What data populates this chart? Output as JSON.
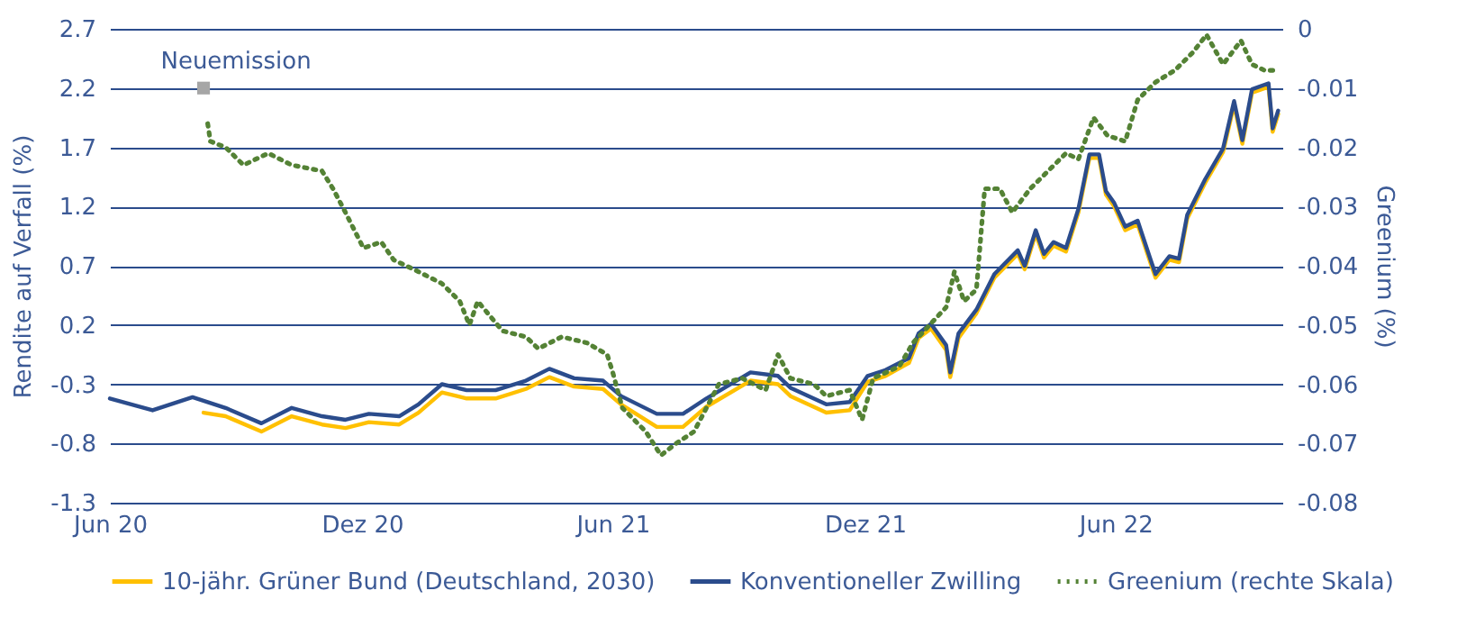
{
  "chart_data": {
    "type": "line",
    "ylabel": "Rendite auf Verfall (%)",
    "y2label": "Greenium (%)",
    "xlim": [
      "2020-06-01",
      "2022-09-30"
    ],
    "xticks": [
      {
        "value": "2020-06-01",
        "label": "Jun 20"
      },
      {
        "value": "2020-12-01",
        "label": "Dez 20"
      },
      {
        "value": "2021-06-01",
        "label": "Jun 21"
      },
      {
        "value": "2021-12-01",
        "label": "Dez 21"
      },
      {
        "value": "2022-06-01",
        "label": "Jun 22"
      }
    ],
    "ylim": [
      -1.3,
      2.7
    ],
    "yticks": [
      -1.3,
      -0.8,
      -0.3,
      0.2,
      0.7,
      1.2,
      1.7,
      2.2,
      2.7
    ],
    "y2lim": [
      -0.08,
      0
    ],
    "y2ticks": [
      -0.08,
      -0.07,
      -0.06,
      -0.05,
      -0.04,
      -0.03,
      -0.02,
      -0.01,
      0
    ],
    "grid": "y",
    "legend": "bottom",
    "annotations": [
      {
        "text": "Neuemission",
        "x": "2020-08-08",
        "y": 2.2
      }
    ],
    "series": [
      {
        "name": "10-jähr. Grüner Bund (Deutschland, 2030)",
        "color": "#ffc000",
        "line_style": "solid",
        "x": [
          "2020-08-08",
          "2020-08-24",
          "2020-09-19",
          "2020-10-11",
          "2020-11-02",
          "2020-11-19",
          "2020-12-06",
          "2020-12-28",
          "2021-01-11",
          "2021-01-28",
          "2021-02-15",
          "2021-03-08",
          "2021-03-30",
          "2021-04-16",
          "2021-05-04",
          "2021-05-25",
          "2021-06-07",
          "2021-07-03",
          "2021-07-22",
          "2021-08-08",
          "2021-09-09",
          "2021-09-29",
          "2021-10-08",
          "2021-11-03",
          "2021-11-20",
          "2021-12-03",
          "2021-12-16",
          "2022-01-02",
          "2022-01-09",
          "2022-01-18",
          "2022-01-29",
          "2022-02-01",
          "2022-02-07",
          "2022-02-20",
          "2022-03-05",
          "2022-03-22",
          "2022-03-27",
          "2022-04-04",
          "2022-04-10",
          "2022-04-17",
          "2022-04-26",
          "2022-05-05",
          "2022-05-13",
          "2022-05-20",
          "2022-05-25",
          "2022-05-31",
          "2022-06-08",
          "2022-06-17",
          "2022-06-27",
          "2022-06-30",
          "2022-07-10",
          "2022-07-17",
          "2022-07-23",
          "2022-08-05",
          "2022-08-18",
          "2022-08-26",
          "2022-09-01",
          "2022-09-08",
          "2022-09-20",
          "2022-09-23",
          "2022-09-27"
        ],
        "values": [
          -0.54,
          -0.57,
          -0.7,
          -0.57,
          -0.64,
          -0.67,
          -0.62,
          -0.64,
          -0.54,
          -0.37,
          -0.42,
          -0.42,
          -0.34,
          -0.24,
          -0.32,
          -0.34,
          -0.47,
          -0.66,
          -0.66,
          -0.49,
          -0.27,
          -0.3,
          -0.4,
          -0.54,
          -0.52,
          -0.28,
          -0.23,
          -0.12,
          0.09,
          0.17,
          -0.01,
          -0.24,
          0.09,
          0.3,
          0.6,
          0.8,
          0.67,
          0.97,
          0.77,
          0.87,
          0.82,
          1.15,
          1.61,
          1.61,
          1.3,
          1.2,
          1.0,
          1.05,
          0.7,
          0.6,
          0.75,
          0.73,
          1.1,
          1.4,
          1.66,
          2.06,
          1.73,
          2.16,
          2.21,
          1.83,
          1.98
        ]
      },
      {
        "name": "Konventioneller Zwilling",
        "color": "#2b4c8c",
        "line_style": "solid",
        "x": [
          "2020-06-01",
          "2020-07-02",
          "2020-07-31",
          "2020-08-24",
          "2020-09-19",
          "2020-10-11",
          "2020-11-02",
          "2020-11-19",
          "2020-12-06",
          "2020-12-28",
          "2021-01-11",
          "2021-01-28",
          "2021-02-15",
          "2021-03-08",
          "2021-03-30",
          "2021-04-16",
          "2021-05-04",
          "2021-05-25",
          "2021-06-07",
          "2021-07-03",
          "2021-07-22",
          "2021-08-08",
          "2021-09-09",
          "2021-09-29",
          "2021-10-08",
          "2021-11-03",
          "2021-11-20",
          "2021-12-03",
          "2021-12-16",
          "2022-01-02",
          "2022-01-09",
          "2022-01-18",
          "2022-01-29",
          "2022-02-01",
          "2022-02-07",
          "2022-02-20",
          "2022-03-05",
          "2022-03-22",
          "2022-03-27",
          "2022-04-04",
          "2022-04-10",
          "2022-04-17",
          "2022-04-26",
          "2022-05-05",
          "2022-05-13",
          "2022-05-20",
          "2022-05-25",
          "2022-05-31",
          "2022-06-08",
          "2022-06-17",
          "2022-06-27",
          "2022-06-30",
          "2022-07-10",
          "2022-07-17",
          "2022-07-23",
          "2022-08-05",
          "2022-08-18",
          "2022-08-26",
          "2022-09-01",
          "2022-09-08",
          "2022-09-20",
          "2022-09-23",
          "2022-09-27"
        ],
        "values": [
          -0.42,
          -0.52,
          -0.41,
          -0.5,
          -0.63,
          -0.5,
          -0.57,
          -0.6,
          -0.55,
          -0.57,
          -0.47,
          -0.3,
          -0.35,
          -0.35,
          -0.27,
          -0.17,
          -0.25,
          -0.27,
          -0.4,
          -0.55,
          -0.55,
          -0.42,
          -0.2,
          -0.23,
          -0.33,
          -0.47,
          -0.45,
          -0.23,
          -0.18,
          -0.08,
          0.13,
          0.21,
          0.03,
          -0.2,
          0.13,
          0.33,
          0.63,
          0.83,
          0.7,
          1.0,
          0.8,
          0.9,
          0.85,
          1.18,
          1.64,
          1.64,
          1.33,
          1.23,
          1.03,
          1.08,
          0.73,
          0.63,
          0.78,
          0.76,
          1.13,
          1.43,
          1.69,
          2.09,
          1.76,
          2.19,
          2.24,
          1.86,
          2.01
        ]
      },
      {
        "name": "Greenium (rechte Skala)",
        "color": "#548235",
        "line_style": "dotted",
        "axis": "y2",
        "x": [
          "2020-08-11",
          "2020-08-13",
          "2020-08-24",
          "2020-09-06",
          "2020-09-24",
          "2020-10-11",
          "2020-11-02",
          "2020-11-10",
          "2020-11-19",
          "2020-12-02",
          "2020-12-15",
          "2020-12-24",
          "2021-01-11",
          "2021-01-28",
          "2021-02-10",
          "2021-02-17",
          "2021-02-23",
          "2021-03-13",
          "2021-03-30",
          "2021-04-08",
          "2021-04-25",
          "2021-05-13",
          "2021-05-28",
          "2021-06-01",
          "2021-06-08",
          "2021-06-25",
          "2021-07-06",
          "2021-07-17",
          "2021-07-30",
          "2021-08-17",
          "2021-09-03",
          "2021-09-20",
          "2021-09-29",
          "2021-10-08",
          "2021-10-25",
          "2021-11-03",
          "2021-11-20",
          "2021-11-29",
          "2021-12-07",
          "2021-12-26",
          "2022-01-05",
          "2022-01-21",
          "2022-01-29",
          "2022-02-04",
          "2022-02-11",
          "2022-02-20",
          "2022-02-26",
          "2022-03-09",
          "2022-03-18",
          "2022-03-31",
          "2022-04-13",
          "2022-04-26",
          "2022-05-05",
          "2022-05-16",
          "2022-05-26",
          "2022-06-08",
          "2022-06-17",
          "2022-06-30",
          "2022-07-14",
          "2022-07-27",
          "2022-08-06",
          "2022-08-18",
          "2022-08-31",
          "2022-09-08",
          "2022-09-17",
          "2022-09-27"
        ],
        "values": [
          -0.016,
          -0.019,
          -0.02,
          -0.023,
          -0.021,
          -0.023,
          -0.024,
          -0.027,
          -0.031,
          -0.037,
          -0.036,
          -0.039,
          -0.041,
          -0.043,
          -0.046,
          -0.05,
          -0.046,
          -0.051,
          -0.052,
          -0.054,
          -0.052,
          -0.053,
          -0.055,
          -0.058,
          -0.064,
          -0.068,
          -0.072,
          -0.07,
          -0.068,
          -0.06,
          -0.059,
          -0.061,
          -0.055,
          -0.059,
          -0.06,
          -0.062,
          -0.061,
          -0.066,
          -0.059,
          -0.057,
          -0.053,
          -0.049,
          -0.047,
          -0.041,
          -0.046,
          -0.044,
          -0.027,
          -0.027,
          -0.031,
          -0.027,
          -0.024,
          -0.021,
          -0.022,
          -0.015,
          -0.018,
          -0.019,
          -0.012,
          -0.009,
          -0.007,
          -0.004,
          -0.001,
          -0.006,
          -0.002,
          -0.006,
          -0.007,
          -0.007
        ]
      }
    ]
  }
}
